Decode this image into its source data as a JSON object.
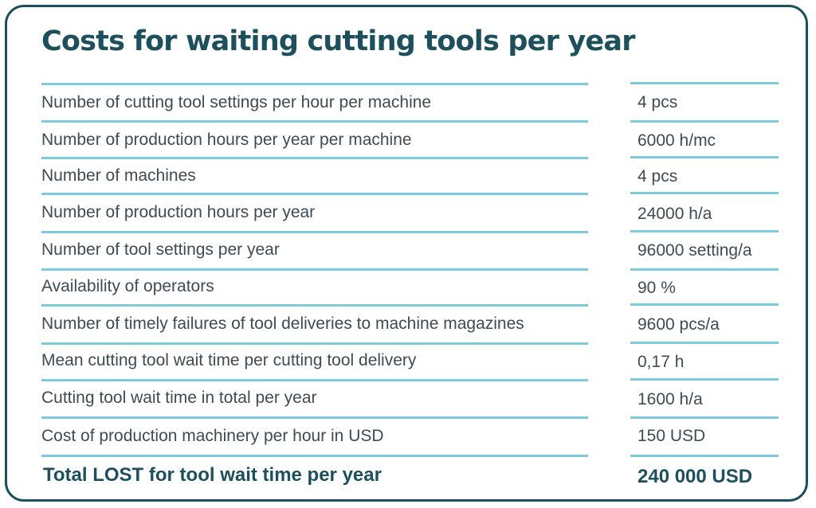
{
  "title": "Costs for waiting cutting tools per year",
  "rows": [
    {
      "label": "Number of cutting tool settings per hour per machine",
      "value": "4 pcs"
    },
    {
      "label": "Number of production hours per year per machine",
      "value": "6000 h/mc"
    },
    {
      "label": "Number of machines",
      "value": "4 pcs"
    },
    {
      "label": "Number of production hours per year",
      "value": "24000 h/a"
    },
    {
      "label": "Number of tool settings per year",
      "value": "96000 setting/a"
    },
    {
      "label": "Availability of operators",
      "value": "90 %"
    },
    {
      "label": "Number of timely failures of tool deliveries to machine magazines",
      "value": "9600 pcs/a"
    },
    {
      "label": "Mean cutting tool wait time per cutting tool delivery",
      "value": "0,17 h"
    },
    {
      "label": "Cutting tool wait time in total per year",
      "value": "1600 h/a"
    },
    {
      "label": "Cost of production machinery per hour in USD",
      "value": "150 USD"
    }
  ],
  "total": {
    "label": "Total LOST for tool wait time per year",
    "value": "240 000 USD"
  },
  "colors": {
    "heading": "#1d4f5c",
    "rule": "#7ccbd9",
    "text": "#3f4a52",
    "border": "#1d4f5c"
  }
}
